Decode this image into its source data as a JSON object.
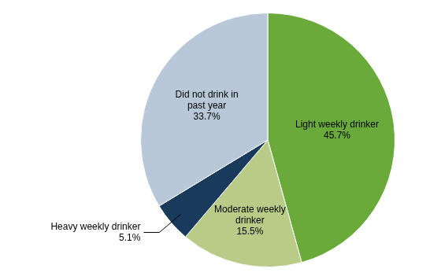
{
  "chart_data": {
    "type": "pie",
    "categories": [
      "Light weekly drinker",
      "Moderate weekly\ndrinker",
      "Heavy weekly drinker",
      "Did not drink in\npast year"
    ],
    "values": [
      45.7,
      15.5,
      5.1,
      33.7
    ],
    "value_labels": [
      "45.7%",
      "15.5%",
      "5.1%",
      "33.7%"
    ],
    "colors": [
      "#6aaa3a",
      "#b8cc88",
      "#1a3a5c",
      "#b8c8d8"
    ],
    "data_labels": true
  }
}
